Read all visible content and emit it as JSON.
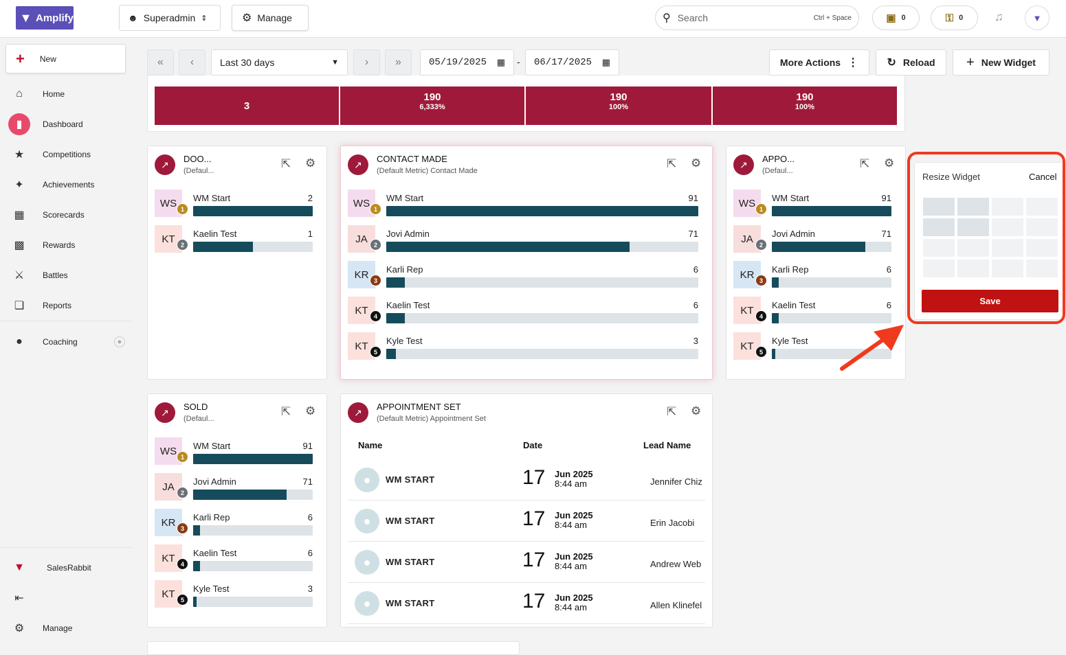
{
  "brand": {
    "name": "Amplify"
  },
  "header": {
    "role": "Superadmin",
    "manage": "Manage",
    "search_placeholder": "Search",
    "shortcut": "Ctrl + Space",
    "count_wallet": "0",
    "count_coins": "0"
  },
  "sidebar": {
    "new": "New",
    "items": [
      {
        "label": "Home"
      },
      {
        "label": "Dashboard"
      },
      {
        "label": "Competitions"
      },
      {
        "label": "Achievements"
      },
      {
        "label": "Scorecards"
      },
      {
        "label": "Rewards"
      },
      {
        "label": "Battles"
      },
      {
        "label": "Reports"
      },
      {
        "label": "Coaching"
      }
    ],
    "salesrabbit": "SalesRabbit",
    "manage": "Manage"
  },
  "toolbar": {
    "range": "Last 30 days",
    "start": "05/19/2025",
    "dash": "-",
    "end": "06/17/2025",
    "more": "More Actions",
    "reload": "Reload",
    "new_widget": "New Widget"
  },
  "funnel": [
    {
      "value": "3",
      "pct": ""
    },
    {
      "value": "190",
      "pct": "6,333%"
    },
    {
      "value": "190",
      "pct": "100%"
    },
    {
      "value": "190",
      "pct": "100%"
    }
  ],
  "colors": {
    "accent": "#9f1a3a",
    "bar": "#164b5c",
    "save": "#c01212"
  },
  "widgets": {
    "door": {
      "title": "DOO...",
      "sub": "(Defaul...",
      "rows": [
        {
          "initials": "WS",
          "rank": "1",
          "name": "WM Start",
          "value": "2",
          "pct": 1.0
        },
        {
          "initials": "KT",
          "rank": "2",
          "name": "Kaelin Test",
          "value": "1",
          "pct": 0.5
        }
      ]
    },
    "contact": {
      "title": "CONTACT MADE",
      "sub": "(Default Metric) Contact Made",
      "rows": [
        {
          "initials": "WS",
          "rank": "1",
          "name": "WM Start",
          "value": "91",
          "pct": 1.0
        },
        {
          "initials": "JA",
          "rank": "2",
          "name": "Jovi Admin",
          "value": "71",
          "pct": 0.78
        },
        {
          "initials": "KR",
          "rank": "3",
          "name": "Karli Rep",
          "value": "6",
          "pct": 0.06
        },
        {
          "initials": "KT",
          "rank": "4",
          "name": "Kaelin Test",
          "value": "6",
          "pct": 0.06
        },
        {
          "initials": "KT",
          "rank": "5",
          "name": "Kyle Test",
          "value": "3",
          "pct": 0.03
        }
      ]
    },
    "appo": {
      "title": "APPO...",
      "sub": "(Defaul...",
      "rows": [
        {
          "initials": "WS",
          "rank": "1",
          "name": "WM Start",
          "value": "91",
          "pct": 1.0
        },
        {
          "initials": "JA",
          "rank": "2",
          "name": "Jovi Admin",
          "value": "71",
          "pct": 0.78
        },
        {
          "initials": "KR",
          "rank": "3",
          "name": "Karli Rep",
          "value": "6",
          "pct": 0.06
        },
        {
          "initials": "KT",
          "rank": "4",
          "name": "Kaelin Test",
          "value": "6",
          "pct": 0.06
        },
        {
          "initials": "KT",
          "rank": "5",
          "name": "Kyle Test",
          "value": "3",
          "pct": 0.03
        }
      ]
    },
    "sold": {
      "title": "SOLD",
      "sub": "(Defaul...",
      "rows": [
        {
          "initials": "WS",
          "rank": "1",
          "name": "WM Start",
          "value": "91",
          "pct": 1.0
        },
        {
          "initials": "JA",
          "rank": "2",
          "name": "Jovi Admin",
          "value": "71",
          "pct": 0.78
        },
        {
          "initials": "KR",
          "rank": "3",
          "name": "Karli Rep",
          "value": "6",
          "pct": 0.06
        },
        {
          "initials": "KT",
          "rank": "4",
          "name": "Kaelin Test",
          "value": "6",
          "pct": 0.06
        },
        {
          "initials": "KT",
          "rank": "5",
          "name": "Kyle Test",
          "value": "3",
          "pct": 0.03
        }
      ]
    },
    "apptset": {
      "title": "APPOINTMENT SET",
      "sub": "(Default Metric) Appointment Set",
      "cols": {
        "name": "Name",
        "date": "Date",
        "lead": "Lead Name"
      },
      "rows": [
        {
          "name": "WM START",
          "day": "17",
          "month": "Jun 2025",
          "time": "8:44 am",
          "lead": "Jennifer Chiz"
        },
        {
          "name": "WM START",
          "day": "17",
          "month": "Jun 2025",
          "time": "8:44 am",
          "lead": "Erin Jacobi"
        },
        {
          "name": "WM START",
          "day": "17",
          "month": "Jun 2025",
          "time": "8:44 am",
          "lead": "Andrew Web"
        },
        {
          "name": "WM START",
          "day": "17",
          "month": "Jun 2025",
          "time": "8:44 am",
          "lead": "Allen Klinefel"
        }
      ]
    }
  },
  "resize": {
    "title": "Resize Widget",
    "cancel": "Cancel",
    "save": "Save",
    "grid_cols": 4,
    "grid_rows": 4,
    "selected_cols": 2,
    "selected_rows": 2
  }
}
